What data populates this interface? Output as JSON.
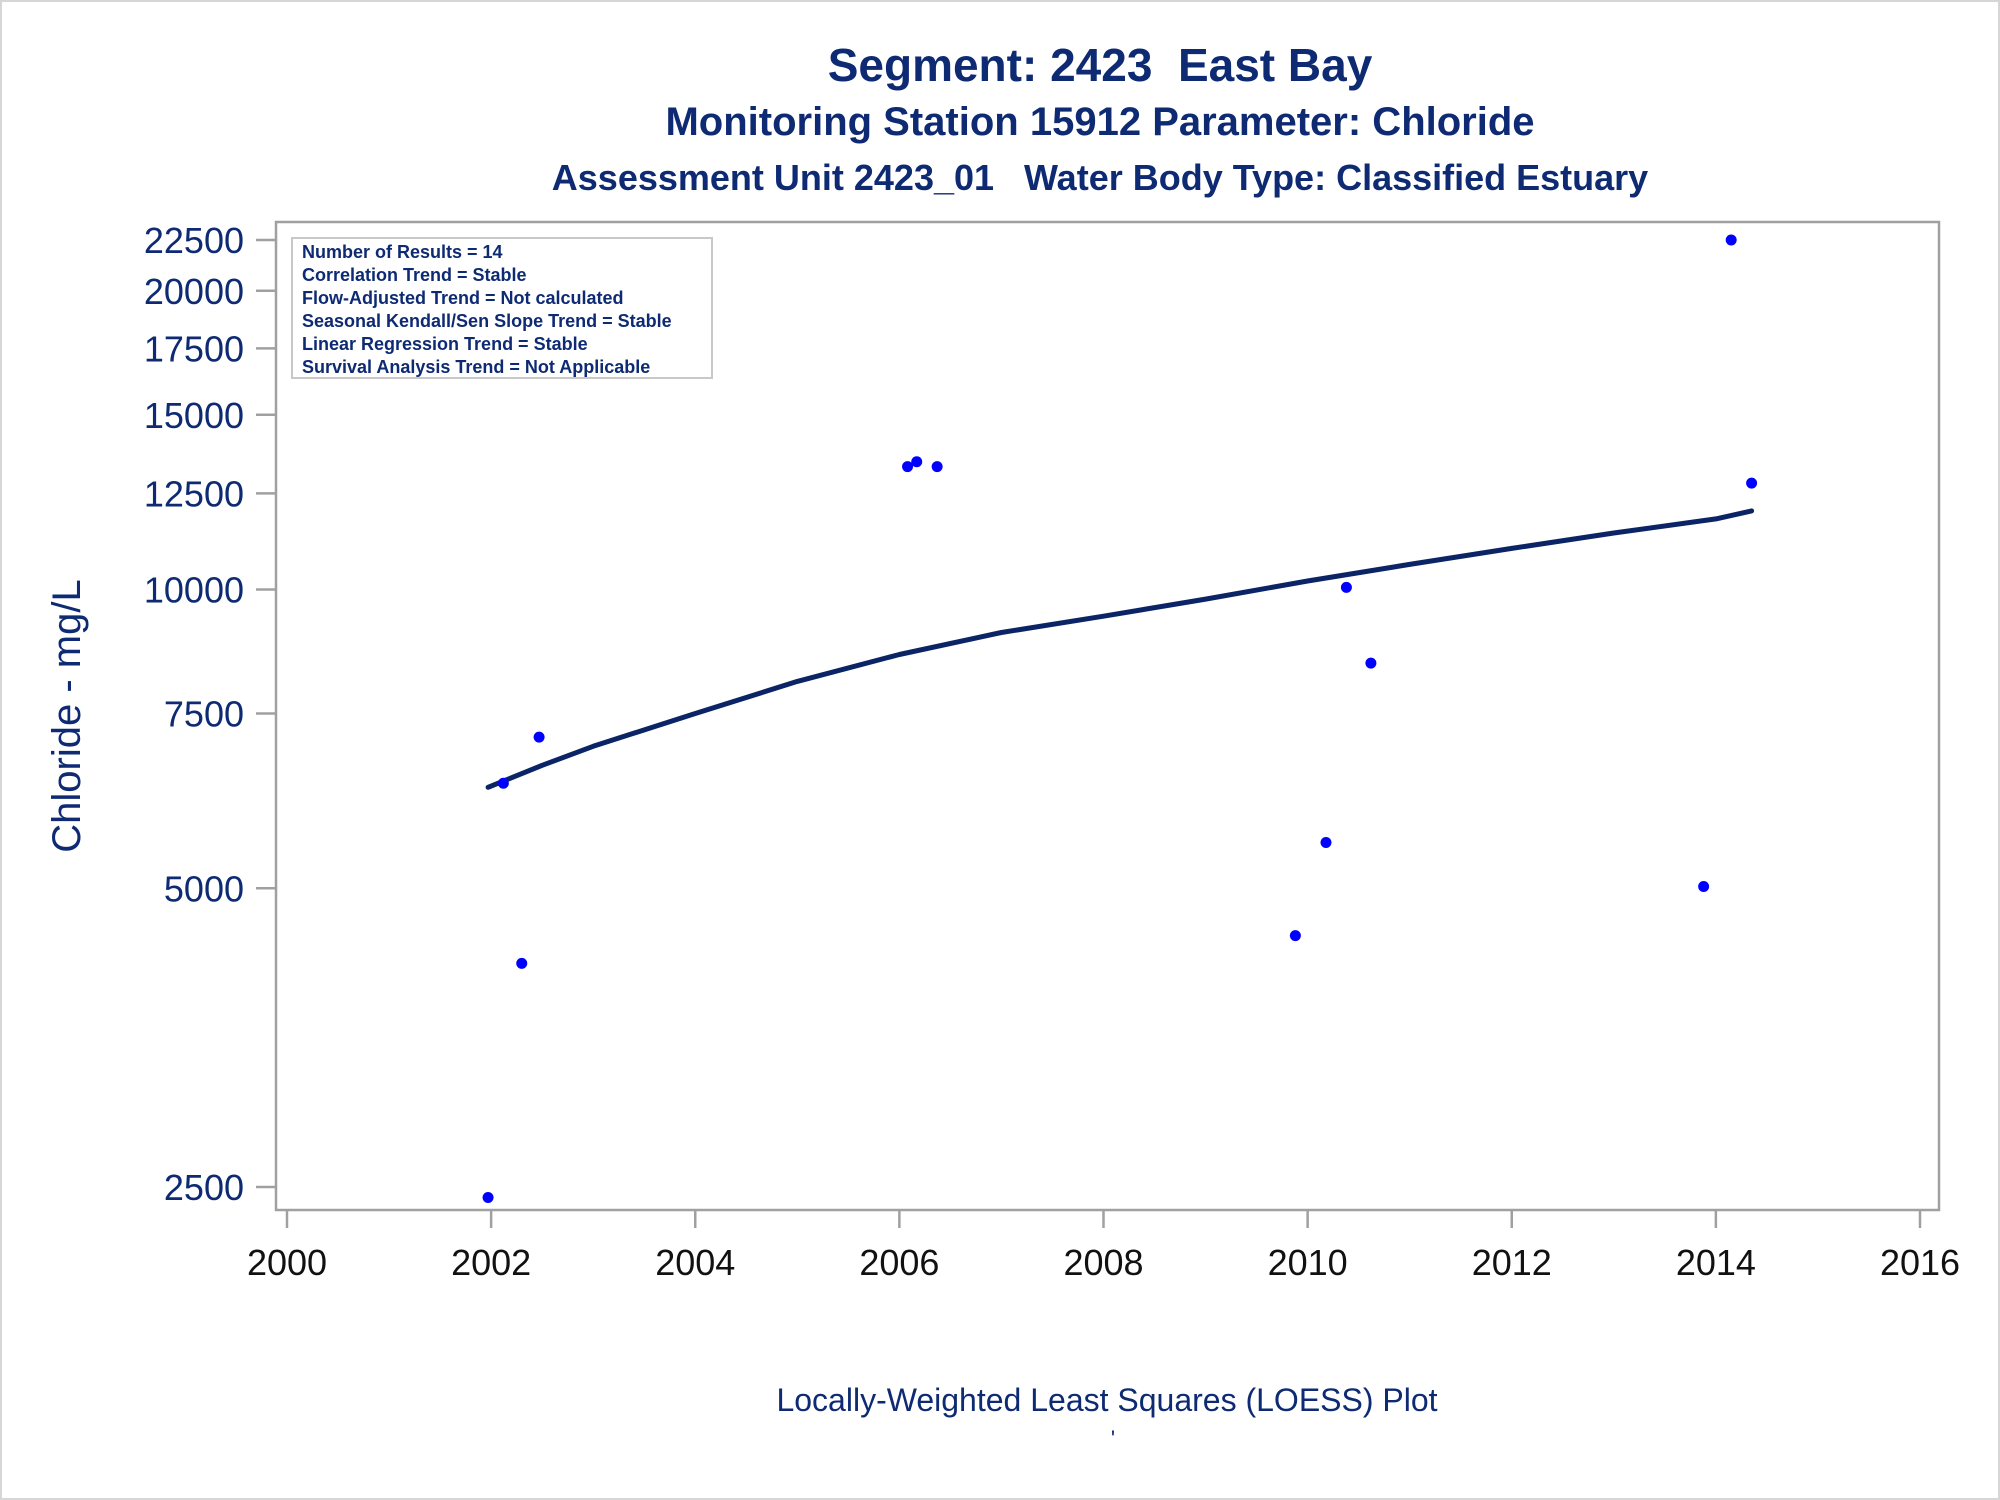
{
  "titles": {
    "line1": "Segment: 2423  East Bay",
    "line2": "Monitoring Station 15912 Parameter: Chloride",
    "line3": "Assessment Unit 2423_01   Water Body Type: Classified Estuary"
  },
  "footnote": "Locally-Weighted Least Squares (LOESS) Plot",
  "footnote_mark": "'",
  "colors": {
    "text": "#0d2a73",
    "points": "#0000ff",
    "curve": "#0b2466",
    "frame": "#a0a0a0"
  },
  "chart_data": {
    "type": "scatter",
    "xlabel": "",
    "ylabel": "Chloride - mg/L",
    "xlim": [
      2000,
      2016
    ],
    "ylim": [
      2400,
      23000
    ],
    "yscale": "log",
    "grid": false,
    "legend_placement": "top-left",
    "x_ticks": [
      "2000",
      "2002",
      "2004",
      "2006",
      "2008",
      "2010",
      "2012",
      "2014",
      "2016"
    ],
    "y_ticks": [
      "2500",
      "5000",
      "7500",
      "10000",
      "12500",
      "15000",
      "17500",
      "20000",
      "22500"
    ],
    "stats": [
      "Number of Results = 14",
      "Correlation Trend = Stable",
      "Flow-Adjusted Trend = Not calculated",
      "Seasonal Kendall/Sen Slope Trend = Stable",
      "Linear Regression Trend = Stable",
      "Survival Analysis Trend = Not Applicable"
    ],
    "points": [
      {
        "x": 2001.97,
        "y": 2440
      },
      {
        "x": 2002.12,
        "y": 6380
      },
      {
        "x": 2002.3,
        "y": 4200
      },
      {
        "x": 2002.47,
        "y": 7100
      },
      {
        "x": 2006.08,
        "y": 13300
      },
      {
        "x": 2006.17,
        "y": 13450
      },
      {
        "x": 2006.37,
        "y": 13300
      },
      {
        "x": 2009.88,
        "y": 4480
      },
      {
        "x": 2010.18,
        "y": 5560
      },
      {
        "x": 2010.38,
        "y": 10050
      },
      {
        "x": 2010.62,
        "y": 8430
      },
      {
        "x": 2013.88,
        "y": 5020
      },
      {
        "x": 2014.15,
        "y": 22500
      },
      {
        "x": 2014.35,
        "y": 12800
      }
    ],
    "loess": [
      {
        "x": 2001.97,
        "y": 6320
      },
      {
        "x": 2002.5,
        "y": 6650
      },
      {
        "x": 2003.0,
        "y": 6950
      },
      {
        "x": 2004.0,
        "y": 7500
      },
      {
        "x": 2005.0,
        "y": 8080
      },
      {
        "x": 2006.0,
        "y": 8600
      },
      {
        "x": 2007.0,
        "y": 9050
      },
      {
        "x": 2008.0,
        "y": 9400
      },
      {
        "x": 2009.0,
        "y": 9780
      },
      {
        "x": 2010.0,
        "y": 10200
      },
      {
        "x": 2011.0,
        "y": 10600
      },
      {
        "x": 2012.0,
        "y": 11000
      },
      {
        "x": 2013.0,
        "y": 11400
      },
      {
        "x": 2014.0,
        "y": 11780
      },
      {
        "x": 2014.35,
        "y": 12000
      }
    ]
  }
}
